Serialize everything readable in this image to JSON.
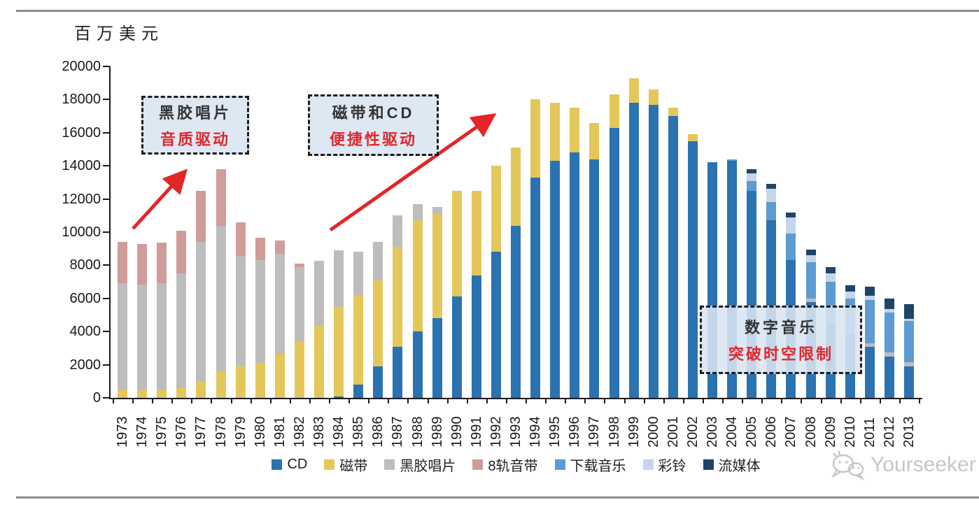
{
  "page": {
    "y_axis_title": "百万美元",
    "watermark_text": "Yourseeker"
  },
  "annotations": [
    {
      "title": "黑胶唱片",
      "subtitle": "音质驱动"
    },
    {
      "title": "磁带和CD",
      "subtitle": "便捷性驱动"
    },
    {
      "title": "数字音乐",
      "subtitle": "突破时空限制"
    }
  ],
  "colors": {
    "arrow_red": "#e42528",
    "axis": "#1a1a1a",
    "callout_bg": "#dae5f1",
    "rule_gray": "#8c8c8c",
    "watermark_gray": "#c6c6c6"
  },
  "chart_data": {
    "type": "bar",
    "stacked": true,
    "title": "",
    "xlabel": "",
    "ylabel": "百万美元",
    "ylim": [
      0,
      20000
    ],
    "ytick_step": 2000,
    "grid": false,
    "legend_position": "bottom",
    "categories": [
      "1973",
      "1974",
      "1975",
      "1976",
      "1977",
      "1978",
      "1979",
      "1980",
      "1981",
      "1982",
      "1983",
      "1984",
      "1985",
      "1986",
      "1987",
      "1988",
      "1989",
      "1990",
      "1991",
      "1992",
      "1993",
      "1994",
      "1995",
      "1996",
      "1997",
      "1998",
      "1999",
      "2000",
      "2001",
      "2002",
      "2003",
      "2004",
      "2005",
      "2006",
      "2007",
      "2008",
      "2009",
      "2010",
      "2011",
      "2012",
      "2013"
    ],
    "series": [
      {
        "name": "CD",
        "color": "#2b72b0",
        "values": [
          0,
          0,
          0,
          0,
          0,
          0,
          0,
          0,
          0,
          0,
          0,
          100,
          800,
          1900,
          3100,
          4000,
          4800,
          6100,
          7400,
          8800,
          10400,
          13300,
          14300,
          14800,
          14400,
          16300,
          17800,
          17700,
          17000,
          15500,
          14200,
          14300,
          12500,
          10700,
          8300,
          5800,
          4500,
          3800,
          3100,
          2500,
          1900
        ]
      },
      {
        "name": "磁带",
        "color": "#e4c75b",
        "values": [
          500,
          500,
          500,
          600,
          950,
          1600,
          1900,
          2100,
          2650,
          3400,
          4350,
          5400,
          5400,
          5200,
          6000,
          6700,
          6300,
          6400,
          5100,
          5200,
          4700,
          4700,
          3500,
          2700,
          2200,
          2000,
          1500,
          900,
          500,
          400,
          0,
          0,
          0,
          0,
          0,
          0,
          0,
          0,
          0,
          0,
          0
        ]
      },
      {
        "name": "黑胶唱片",
        "color": "#bdbdbd",
        "values": [
          6400,
          6350,
          6400,
          6900,
          8450,
          8800,
          6650,
          6200,
          6050,
          4500,
          3900,
          3400,
          2600,
          2300,
          1900,
          1000,
          400,
          0,
          0,
          0,
          0,
          0,
          0,
          0,
          0,
          0,
          0,
          0,
          0,
          0,
          0,
          0,
          0,
          0,
          0,
          200,
          0,
          0,
          200,
          250,
          250
        ]
      },
      {
        "name": "8轨音带",
        "color": "#cf9c99",
        "values": [
          2500,
          2450,
          2450,
          2600,
          3100,
          3400,
          2050,
          1350,
          800,
          200,
          0,
          0,
          0,
          0,
          0,
          0,
          0,
          0,
          0,
          0,
          0,
          0,
          0,
          0,
          0,
          0,
          0,
          0,
          0,
          0,
          0,
          0,
          0,
          0,
          0,
          0,
          0,
          0,
          0,
          0,
          0
        ]
      },
      {
        "name": "下载音乐",
        "color": "#5d9bd3",
        "values": [
          0,
          0,
          0,
          0,
          0,
          0,
          0,
          0,
          0,
          0,
          0,
          0,
          0,
          0,
          0,
          0,
          0,
          0,
          0,
          0,
          0,
          0,
          0,
          0,
          0,
          0,
          0,
          0,
          0,
          0,
          0,
          100,
          600,
          1100,
          1600,
          2200,
          2500,
          2200,
          2600,
          2400,
          2500
        ]
      },
      {
        "name": "彩铃",
        "color": "#c6d5ea",
        "values": [
          0,
          0,
          0,
          0,
          0,
          0,
          0,
          0,
          0,
          0,
          0,
          0,
          0,
          0,
          0,
          0,
          0,
          0,
          0,
          0,
          0,
          0,
          0,
          0,
          0,
          0,
          0,
          0,
          0,
          0,
          0,
          0,
          450,
          800,
          1000,
          400,
          500,
          400,
          250,
          200,
          100
        ]
      },
      {
        "name": "流媒体",
        "color": "#1f4566",
        "values": [
          0,
          0,
          0,
          0,
          0,
          0,
          0,
          0,
          0,
          0,
          0,
          0,
          0,
          0,
          0,
          0,
          0,
          0,
          0,
          0,
          0,
          0,
          0,
          0,
          0,
          0,
          0,
          0,
          0,
          0,
          0,
          0,
          250,
          300,
          300,
          350,
          400,
          400,
          550,
          650,
          900
        ]
      }
    ]
  }
}
